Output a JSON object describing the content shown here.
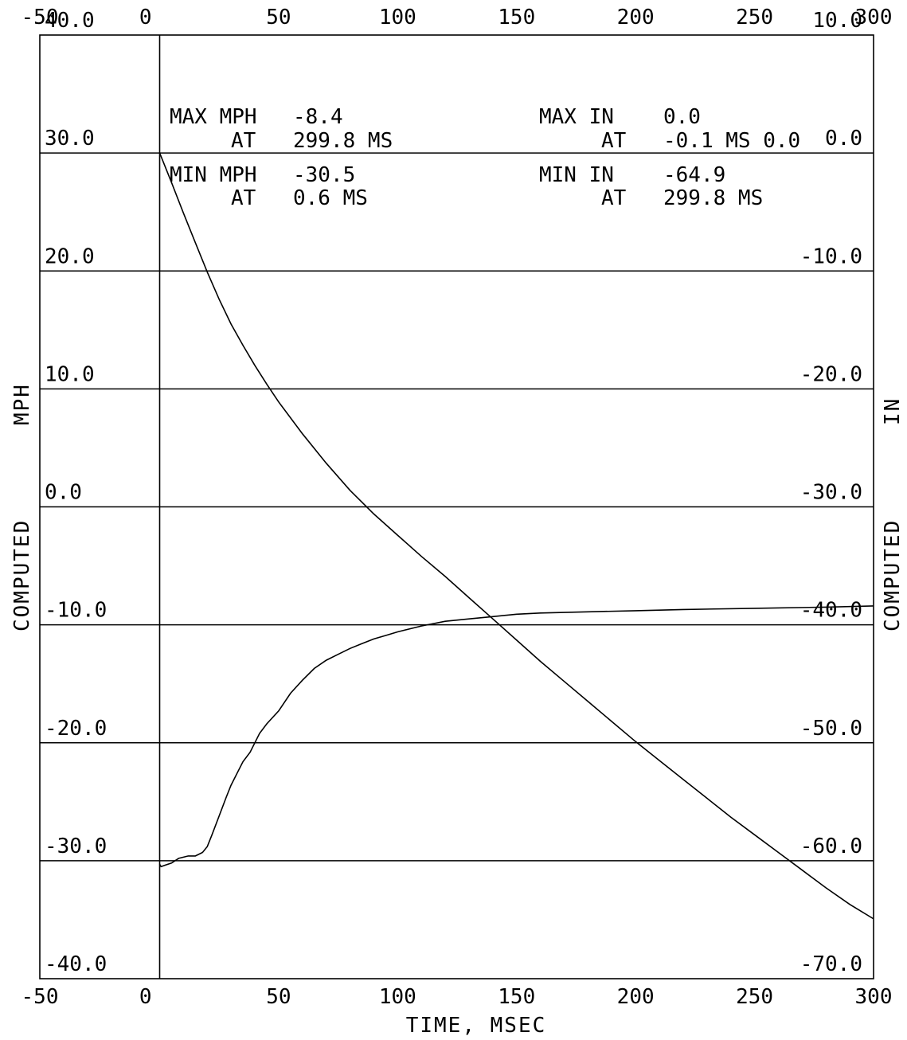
{
  "chart_data": {
    "type": "line",
    "xlabel": "TIME, MSEC",
    "ylabel_left": "COMPUTED MPH",
    "ylabel_left_parts": [
      "COMPUTED",
      "MPH"
    ],
    "ylabel_right": "COMPUTED IN",
    "ylabel_right_parts": [
      "COMPUTED",
      "IN"
    ],
    "xlim": [
      -50,
      300
    ],
    "ylim_left": [
      -40,
      40
    ],
    "ylim_right": [
      -70,
      10
    ],
    "x_ticks": [
      -50,
      0,
      50,
      100,
      150,
      200,
      250,
      300
    ],
    "x_tick_labels": [
      "-50",
      "0",
      "50",
      "100",
      "150",
      "200",
      "250",
      "300"
    ],
    "y_left_ticks": [
      40,
      30,
      20,
      10,
      0,
      -10,
      -20,
      -30,
      -40
    ],
    "y_left_tick_labels": [
      "40.0",
      "30.0",
      "20.0",
      "10.0",
      "0.0",
      "-10.0",
      "-20.0",
      "-30.0",
      "-40.0"
    ],
    "y_right_ticks": [
      10,
      0,
      -10,
      -20,
      -30,
      -40,
      -50,
      -60,
      -70
    ],
    "y_right_tick_labels": [
      "10.0",
      "0.0",
      "-10.0",
      "-20.0",
      "-30.0",
      "-40.0",
      "-50.0",
      "-60.0",
      "-70.0"
    ],
    "grid": true,
    "annotations": {
      "max_mph": {
        "label": "MAX MPH",
        "value": "-8.4",
        "at_label": "AT",
        "at": "299.8 MS"
      },
      "min_mph": {
        "label": "MIN MPH",
        "value": "-30.5",
        "at_label": "AT",
        "at": "0.6 MS"
      },
      "max_in": {
        "label": "MAX IN",
        "value": "0.0",
        "at_label": "AT",
        "at": "-0.1 MS 0.0"
      },
      "min_in": {
        "label": "MIN IN",
        "value": "-64.9",
        "at_label": "AT",
        "at": "299.8 MS"
      }
    },
    "series": [
      {
        "axis": "left",
        "units": "MPH",
        "x": [
          0,
          0.6,
          2,
          5,
          8,
          12,
          15,
          18,
          20,
          22,
          25,
          28,
          30,
          33,
          35,
          38,
          40,
          42,
          45,
          50,
          55,
          60,
          65,
          70,
          75,
          80,
          85,
          90,
          95,
          100,
          110,
          120,
          130,
          140,
          150,
          160,
          180,
          200,
          220,
          250,
          280,
          299.8
        ],
        "y": [
          -30.3,
          -30.5,
          -30.4,
          -30.2,
          -29.8,
          -29.6,
          -29.6,
          -29.3,
          -28.8,
          -27.8,
          -26.2,
          -24.6,
          -23.6,
          -22.4,
          -21.6,
          -20.8,
          -20.0,
          -19.2,
          -18.4,
          -17.3,
          -15.8,
          -14.7,
          -13.7,
          -13.0,
          -12.5,
          -12.0,
          -11.6,
          -11.2,
          -10.9,
          -10.6,
          -10.1,
          -9.7,
          -9.5,
          -9.3,
          -9.1,
          -9.0,
          -8.9,
          -8.8,
          -8.7,
          -8.6,
          -8.5,
          -8.4
        ]
      },
      {
        "axis": "right",
        "units": "IN",
        "x": [
          0,
          5,
          10,
          15,
          20,
          25,
          30,
          35,
          40,
          45,
          50,
          60,
          70,
          80,
          90,
          100,
          110,
          120,
          130,
          140,
          150,
          160,
          170,
          180,
          190,
          200,
          210,
          220,
          230,
          240,
          250,
          260,
          270,
          280,
          290,
          299.8
        ],
        "y": [
          0.0,
          -2.5,
          -5.1,
          -7.6,
          -10.1,
          -12.4,
          -14.5,
          -16.3,
          -18.0,
          -19.6,
          -21.1,
          -23.8,
          -26.3,
          -28.6,
          -30.6,
          -32.4,
          -34.2,
          -35.9,
          -37.7,
          -39.5,
          -41.3,
          -43.1,
          -44.8,
          -46.5,
          -48.2,
          -49.9,
          -51.5,
          -53.1,
          -54.7,
          -56.3,
          -57.8,
          -59.3,
          -60.8,
          -62.3,
          -63.7,
          -64.9
        ]
      }
    ]
  }
}
